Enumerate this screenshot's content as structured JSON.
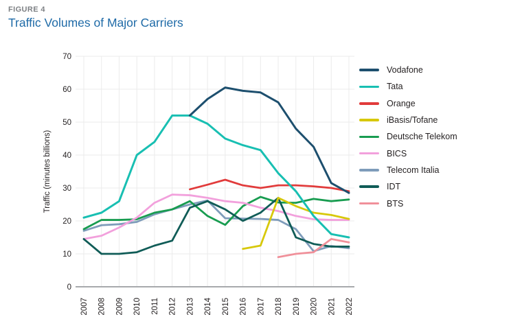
{
  "figure": {
    "label": "FIGURE 4",
    "title": "Traffic Volumes of Major Carriers",
    "title_color": "#1e6aa7"
  },
  "chart_data": {
    "type": "line",
    "x": [
      2007,
      2008,
      2009,
      2010,
      2011,
      2012,
      2013,
      2014,
      2015,
      2016,
      2017,
      2018,
      2019,
      2020,
      2021,
      2022
    ],
    "xlabel": "",
    "ylabel": "Traffic (minutes billions)",
    "ylim": [
      0,
      70
    ],
    "y_ticks": [
      0,
      10,
      20,
      30,
      40,
      50,
      60,
      70
    ],
    "grid": true,
    "legend_position": "right",
    "series": [
      {
        "name": "Vodafone",
        "color": "#1d4f6e",
        "width": 3,
        "values": [
          null,
          null,
          null,
          null,
          null,
          null,
          52,
          57,
          60.5,
          59.5,
          59,
          56,
          48,
          42.5,
          31.5,
          28.5
        ]
      },
      {
        "name": "Tata",
        "color": "#18bfb2",
        "width": 3,
        "values": [
          21,
          22.5,
          26,
          40,
          44,
          52,
          52,
          49.5,
          45,
          43,
          41.5,
          34.5,
          29,
          21.5,
          16,
          15
        ]
      },
      {
        "name": "Orange",
        "color": "#e13b3b",
        "width": 2.8,
        "values": [
          null,
          null,
          null,
          null,
          null,
          null,
          29.6,
          31,
          32.5,
          30.8,
          30,
          30.8,
          30.8,
          30.5,
          30,
          29
        ]
      },
      {
        "name": "iBasis/Tofane",
        "color": "#d7c80a",
        "width": 2.8,
        "values": [
          null,
          null,
          null,
          null,
          null,
          null,
          null,
          null,
          null,
          11.5,
          12.5,
          27,
          24.5,
          22.5,
          21.8,
          20.6
        ]
      },
      {
        "name": "Deutsche Telekom",
        "color": "#189c50",
        "width": 2.8,
        "values": [
          17.5,
          20.3,
          20.3,
          20.5,
          22.5,
          23.5,
          26,
          21.5,
          18.8,
          24.5,
          27.3,
          25.6,
          25.5,
          26.7,
          26,
          26.5
        ]
      },
      {
        "name": "BICS",
        "color": "#f2a0dc",
        "width": 2.8,
        "values": [
          14.5,
          15.5,
          18,
          21,
          25.5,
          28,
          27.8,
          27,
          26,
          25.5,
          24,
          23,
          21.5,
          20.5,
          20.3,
          20.3
        ]
      },
      {
        "name": "Telecom Italia",
        "color": "#7e9cba",
        "width": 2.8,
        "values": [
          17,
          18.7,
          19,
          19.7,
          22,
          23.5,
          25,
          26.2,
          20.8,
          20.7,
          20.6,
          20.3,
          17.5,
          10.8,
          12.4,
          11.7
        ]
      },
      {
        "name": "IDT",
        "color": "#105c57",
        "width": 2.8,
        "values": [
          14.5,
          10,
          10,
          10.5,
          12.5,
          14,
          24,
          26,
          23.5,
          20,
          22.5,
          27,
          15,
          13,
          12.2,
          12.2
        ]
      },
      {
        "name": "BTS",
        "color": "#f0909a",
        "width": 2.8,
        "values": [
          null,
          null,
          null,
          null,
          null,
          null,
          null,
          null,
          null,
          null,
          null,
          9,
          10,
          10.5,
          14.5,
          13.5
        ]
      }
    ],
    "draw_order": [
      "Telecom Italia",
      "Deutsche Telekom",
      "BICS",
      "IDT",
      "iBasis/Tofane",
      "BTS",
      "Orange",
      "Tata",
      "Vodafone"
    ]
  }
}
